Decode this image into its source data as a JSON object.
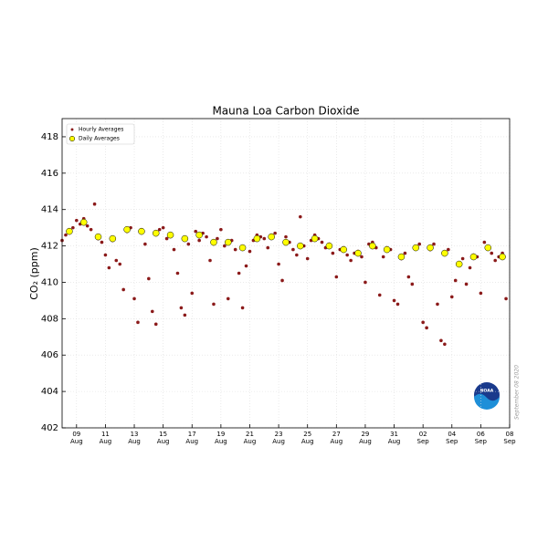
{
  "chart_data": {
    "type": "scatter",
    "title": "Mauna Loa Carbon Dioxide",
    "ylabel": "CO₂ (ppm)",
    "annotation": "September 08 2020",
    "logo_text": "NOAA",
    "ylim": [
      402,
      419
    ],
    "yticks": [
      402,
      404,
      406,
      408,
      410,
      412,
      414,
      416,
      418
    ],
    "xlim": [
      "2020-08-08T00:00",
      "2020-09-08T00:00"
    ],
    "xticks": [
      {
        "value": "2020-08-09T00:00",
        "label": [
          "09",
          "Aug"
        ]
      },
      {
        "value": "2020-08-11T00:00",
        "label": [
          "11",
          "Aug"
        ]
      },
      {
        "value": "2020-08-13T00:00",
        "label": [
          "13",
          "Aug"
        ]
      },
      {
        "value": "2020-08-15T00:00",
        "label": [
          "15",
          "Aug"
        ]
      },
      {
        "value": "2020-08-17T00:00",
        "label": [
          "17",
          "Aug"
        ]
      },
      {
        "value": "2020-08-19T00:00",
        "label": [
          "19",
          "Aug"
        ]
      },
      {
        "value": "2020-08-21T00:00",
        "label": [
          "21",
          "Aug"
        ]
      },
      {
        "value": "2020-08-23T00:00",
        "label": [
          "23",
          "Aug"
        ]
      },
      {
        "value": "2020-08-25T00:00",
        "label": [
          "25",
          "Aug"
        ]
      },
      {
        "value": "2020-08-27T00:00",
        "label": [
          "27",
          "Aug"
        ]
      },
      {
        "value": "2020-08-29T00:00",
        "label": [
          "29",
          "Aug"
        ]
      },
      {
        "value": "2020-08-31T00:00",
        "label": [
          "31",
          "Aug"
        ]
      },
      {
        "value": "2020-09-02T00:00",
        "label": [
          "02",
          "Sep"
        ]
      },
      {
        "value": "2020-09-04T00:00",
        "label": [
          "04",
          "Sep"
        ]
      },
      {
        "value": "2020-09-06T00:00",
        "label": [
          "06",
          "Sep"
        ]
      },
      {
        "value": "2020-09-08T00:00",
        "label": [
          "08",
          "Sep"
        ]
      }
    ],
    "grid": true,
    "legend": "upper left",
    "series": [
      {
        "name": "Hourly Averages",
        "color": "#8b1a1a",
        "marker_size": 1.8,
        "x": [
          "2020-08-08T00:00",
          "2020-08-08T06:00",
          "2020-08-08T12:00",
          "2020-08-08T18:00",
          "2020-08-09T00:00",
          "2020-08-09T06:00",
          "2020-08-09T12:00",
          "2020-08-09T18:00",
          "2020-08-10T00:00",
          "2020-08-10T06:00",
          "2020-08-10T12:00",
          "2020-08-10T18:00",
          "2020-08-11T00:00",
          "2020-08-11T06:00",
          "2020-08-11T12:00",
          "2020-08-11T18:00",
          "2020-08-12T00:00",
          "2020-08-12T06:00",
          "2020-08-12T12:00",
          "2020-08-12T18:00",
          "2020-08-13T00:00",
          "2020-08-13T06:00",
          "2020-08-13T12:00",
          "2020-08-13T18:00",
          "2020-08-14T00:00",
          "2020-08-14T06:00",
          "2020-08-14T12:00",
          "2020-08-14T18:00",
          "2020-08-15T00:00",
          "2020-08-15T06:00",
          "2020-08-15T12:00",
          "2020-08-15T18:00",
          "2020-08-16T00:00",
          "2020-08-16T06:00",
          "2020-08-16T12:00",
          "2020-08-16T18:00",
          "2020-08-17T00:00",
          "2020-08-17T06:00",
          "2020-08-17T12:00",
          "2020-08-17T18:00",
          "2020-08-18T00:00",
          "2020-08-18T06:00",
          "2020-08-18T12:00",
          "2020-08-18T18:00",
          "2020-08-19T00:00",
          "2020-08-19T06:00",
          "2020-08-19T12:00",
          "2020-08-19T18:00",
          "2020-08-20T00:00",
          "2020-08-20T06:00",
          "2020-08-20T12:00",
          "2020-08-20T18:00",
          "2020-08-21T00:00",
          "2020-08-21T06:00",
          "2020-08-21T12:00",
          "2020-08-21T18:00",
          "2020-08-22T00:00",
          "2020-08-22T06:00",
          "2020-08-22T12:00",
          "2020-08-22T18:00",
          "2020-08-23T00:00",
          "2020-08-23T06:00",
          "2020-08-23T12:00",
          "2020-08-23T18:00",
          "2020-08-24T00:00",
          "2020-08-24T06:00",
          "2020-08-24T12:00",
          "2020-08-24T18:00",
          "2020-08-25T00:00",
          "2020-08-25T06:00",
          "2020-08-25T12:00",
          "2020-08-25T18:00",
          "2020-08-26T00:00",
          "2020-08-26T06:00",
          "2020-08-26T12:00",
          "2020-08-26T18:00",
          "2020-08-27T00:00",
          "2020-08-27T06:00",
          "2020-08-27T12:00",
          "2020-08-27T18:00",
          "2020-08-28T00:00",
          "2020-08-28T06:00",
          "2020-08-28T12:00",
          "2020-08-28T18:00",
          "2020-08-29T00:00",
          "2020-08-29T06:00",
          "2020-08-29T12:00",
          "2020-08-29T18:00",
          "2020-08-30T00:00",
          "2020-08-30T06:00",
          "2020-08-30T12:00",
          "2020-08-30T18:00",
          "2020-08-31T00:00",
          "2020-08-31T06:00",
          "2020-08-31T12:00",
          "2020-08-31T18:00",
          "2020-09-01T00:00",
          "2020-09-01T06:00",
          "2020-09-01T12:00",
          "2020-09-01T18:00",
          "2020-09-02T00:00",
          "2020-09-02T06:00",
          "2020-09-02T12:00",
          "2020-09-02T18:00",
          "2020-09-03T00:00",
          "2020-09-03T06:00",
          "2020-09-03T12:00",
          "2020-09-03T18:00",
          "2020-09-04T00:00",
          "2020-09-04T06:00",
          "2020-09-04T12:00",
          "2020-09-04T18:00",
          "2020-09-05T00:00",
          "2020-09-05T06:00",
          "2020-09-05T12:00",
          "2020-09-05T18:00",
          "2020-09-06T00:00",
          "2020-09-06T06:00",
          "2020-09-06T12:00",
          "2020-09-06T18:00",
          "2020-09-07T00:00",
          "2020-09-07T06:00",
          "2020-09-07T12:00",
          "2020-09-07T18:00"
        ],
        "values": [
          412.3,
          412.6,
          412.9,
          413.0,
          413.4,
          413.2,
          413.5,
          413.1,
          412.9,
          414.3,
          412.4,
          412.2,
          411.5,
          410.8,
          412.3,
          411.2,
          411.0,
          409.6,
          412.8,
          413.0,
          409.1,
          407.8,
          412.9,
          412.1,
          410.2,
          408.4,
          407.7,
          412.9,
          413.0,
          412.4,
          412.6,
          411.8,
          410.5,
          408.6,
          408.2,
          412.1,
          409.4,
          412.8,
          412.3,
          412.7,
          412.5,
          411.2,
          408.8,
          412.4,
          412.9,
          412.0,
          409.1,
          412.3,
          411.8,
          410.5,
          408.6,
          410.9,
          411.7,
          412.3,
          412.6,
          412.5,
          412.4,
          411.9,
          412.6,
          412.7,
          411.0,
          410.1,
          412.5,
          412.2,
          411.8,
          411.5,
          413.6,
          412.0,
          411.3,
          412.3,
          412.6,
          412.4,
          412.2,
          411.9,
          412.1,
          411.6,
          410.3,
          411.8,
          411.9,
          411.5,
          411.2,
          411.6,
          411.7,
          411.4,
          410.0,
          412.1,
          412.2,
          411.9,
          409.3,
          411.4,
          411.9,
          411.8,
          409.0,
          408.8,
          411.3,
          411.6,
          410.3,
          409.9,
          411.9,
          412.1,
          407.8,
          407.5,
          411.8,
          412.1,
          408.8,
          406.8,
          406.6,
          411.8,
          409.2,
          410.1,
          411.0,
          411.3,
          409.9,
          410.8,
          411.5,
          411.4,
          409.4,
          412.2,
          411.9,
          411.6,
          411.2,
          411.4,
          411.6,
          409.1
        ]
      },
      {
        "name": "Daily Averages",
        "color": "#ffff00",
        "marker_size": 3.5,
        "x": [
          "2020-08-08T12:00",
          "2020-08-09T12:00",
          "2020-08-10T12:00",
          "2020-08-11T12:00",
          "2020-08-12T12:00",
          "2020-08-13T12:00",
          "2020-08-14T12:00",
          "2020-08-15T12:00",
          "2020-08-16T12:00",
          "2020-08-17T12:00",
          "2020-08-18T12:00",
          "2020-08-19T12:00",
          "2020-08-20T12:00",
          "2020-08-21T12:00",
          "2020-08-22T12:00",
          "2020-08-23T12:00",
          "2020-08-24T12:00",
          "2020-08-25T12:00",
          "2020-08-26T12:00",
          "2020-08-27T12:00",
          "2020-08-28T12:00",
          "2020-08-29T12:00",
          "2020-08-30T12:00",
          "2020-08-31T12:00",
          "2020-09-01T12:00",
          "2020-09-02T12:00",
          "2020-09-03T12:00",
          "2020-09-04T12:00",
          "2020-09-05T12:00",
          "2020-09-06T12:00",
          "2020-09-07T12:00"
        ],
        "values": [
          412.8,
          413.3,
          412.5,
          412.4,
          412.9,
          412.8,
          412.7,
          412.6,
          412.4,
          412.6,
          412.2,
          412.2,
          411.9,
          412.4,
          412.5,
          412.2,
          412.0,
          412.4,
          412.0,
          411.8,
          411.6,
          412.0,
          411.8,
          411.4,
          411.9,
          411.9,
          411.6,
          411.0,
          411.4,
          411.9,
          411.4
        ]
      }
    ]
  }
}
